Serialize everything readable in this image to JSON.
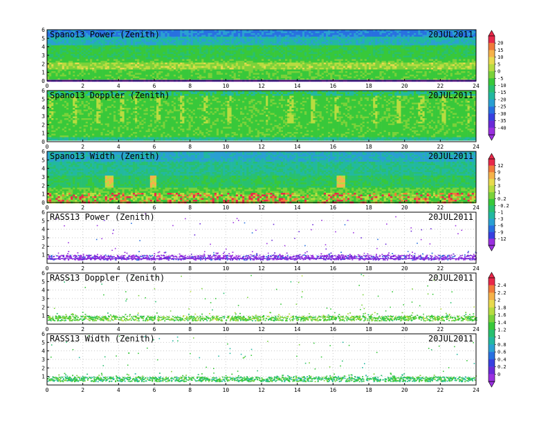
{
  "chart_data": [
    {
      "type": "heatmap",
      "title": "Spano13 Power (Zenith)",
      "date": "20JUL2011",
      "field": "spower",
      "xlim": [
        0,
        24
      ],
      "ylim": [
        0,
        6
      ],
      "x_ticks": [
        "0",
        "2",
        "4",
        "6",
        "8",
        "10",
        "12",
        "14",
        "16",
        "18",
        "20",
        "22",
        "24"
      ],
      "y_ticks": [
        "0",
        "1",
        "2",
        "3",
        "4",
        "5",
        "6"
      ],
      "colorbar": "cb1"
    },
    {
      "type": "heatmap",
      "title": "Spano13 Doppler (Zenith)",
      "date": "20JUL2011",
      "field": "sdoppler",
      "xlim": [
        0,
        24
      ],
      "ylim": [
        0,
        6
      ],
      "x_ticks": [
        "0",
        "2",
        "4",
        "6",
        "8",
        "10",
        "12",
        "14",
        "16",
        "18",
        "20",
        "22",
        "24"
      ],
      "y_ticks": [
        "0",
        "1",
        "2",
        "3",
        "4",
        "5",
        "6"
      ],
      "colorbar": "cb1"
    },
    {
      "type": "heatmap",
      "title": "Spano13 Width (Zenith)",
      "date": "20JUL2011",
      "field": "swidth",
      "xlim": [
        0,
        24
      ],
      "ylim": [
        0,
        6
      ],
      "x_ticks": [
        "0",
        "2",
        "4",
        "6",
        "8",
        "10",
        "12",
        "14",
        "16",
        "18",
        "20",
        "22",
        "24"
      ],
      "y_ticks": [
        "0",
        "1",
        "2",
        "3",
        "4",
        "5",
        "6"
      ],
      "colorbar": "cb2"
    },
    {
      "type": "scatter",
      "title": "RASS13 Power (Zenith)",
      "date": "20JUL2011",
      "field": "rpower",
      "xlim": [
        0,
        24
      ],
      "ylim": [
        0,
        6
      ],
      "x_ticks": [
        "0",
        "2",
        "4",
        "6",
        "8",
        "10",
        "12",
        "14",
        "16",
        "18",
        "20",
        "22",
        "24"
      ],
      "y_ticks": [
        "1",
        "2",
        "3",
        "4",
        "5",
        "6"
      ],
      "colorbar": "cb2"
    },
    {
      "type": "scatter",
      "title": "RASS13 Doppler (Zenith)",
      "date": "20JUL2011",
      "field": "rdoppler",
      "xlim": [
        0,
        24
      ],
      "ylim": [
        0,
        6
      ],
      "x_ticks": [
        "0",
        "2",
        "4",
        "6",
        "8",
        "10",
        "12",
        "14",
        "16",
        "18",
        "20",
        "22",
        "24"
      ],
      "y_ticks": [
        "1",
        "2",
        "3",
        "4",
        "5",
        "6"
      ],
      "colorbar": "cb3"
    },
    {
      "type": "scatter",
      "title": "RASS13 Width (Zenith)",
      "date": "20JUL2011",
      "field": "rwidth",
      "xlim": [
        0,
        24
      ],
      "ylim": [
        0,
        6
      ],
      "x_ticks": [
        "0",
        "2",
        "4",
        "6",
        "8",
        "10",
        "12",
        "14",
        "16",
        "18",
        "20",
        "22",
        "24"
      ],
      "y_ticks": [
        "1",
        "2",
        "3",
        "4",
        "5",
        "6"
      ],
      "colorbar": "cb3"
    }
  ],
  "colorbars": {
    "cb1": {
      "labels": [
        "20",
        "15",
        "10",
        "5",
        "0",
        "-5",
        "-10",
        "-15",
        "-20",
        "-25",
        "-30",
        "-35",
        "-40"
      ],
      "colors": [
        "#e8284a",
        "#f07a3a",
        "#f5b24a",
        "#e8da4e",
        "#b8dc40",
        "#7ad23a",
        "#38c83a",
        "#28c070",
        "#22b8a0",
        "#2aa0d2",
        "#2870e0",
        "#3840e0",
        "#6a2ad8",
        "#9a30e0"
      ]
    },
    "cb2": {
      "labels": [
        "12",
        "9",
        "6",
        "3",
        "1",
        "0.2",
        "-0.2",
        "-1",
        "-3",
        "-6",
        "-9",
        "-12"
      ],
      "colors": [
        "#e8284a",
        "#f07a3a",
        "#f5b24a",
        "#e8da4e",
        "#b8dc40",
        "#7ad23a",
        "#38c83a",
        "#28c070",
        "#22b8a0",
        "#2aa0d2",
        "#2870e0",
        "#3840e0",
        "#9a30e0"
      ]
    },
    "cb3": {
      "labels": [
        "2.4",
        "2.2",
        "2",
        "1.8",
        "1.6",
        "1.4",
        "1.2",
        "1",
        "0.8",
        "0.6",
        "0.4",
        "0.2",
        "0"
      ],
      "colors": [
        "#e8284a",
        "#f07a3a",
        "#f5b24a",
        "#e8da4e",
        "#b8dc40",
        "#7ad23a",
        "#38c83a",
        "#28c070",
        "#22b8a0",
        "#2aa0d2",
        "#2870e0",
        "#3840e0",
        "#6a2ad8",
        "#9a30e0"
      ]
    }
  }
}
